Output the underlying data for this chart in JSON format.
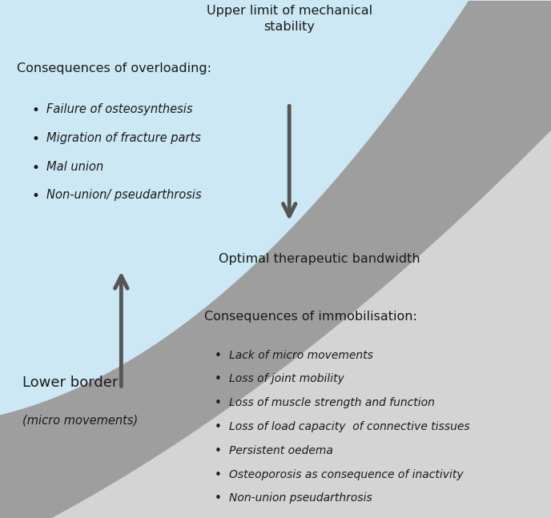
{
  "bg_color": "#ffffff",
  "light_blue": "#cce8f4",
  "gray_band": "#9e9e9e",
  "gray_light": "#d4d4d4",
  "text_color": "#1a1a1a",
  "arrow_color": "#555555",
  "figsize": [
    6.88,
    6.47
  ],
  "dpi": 100,
  "upper_label": "Upper limit of mechanical\nstability",
  "lower_label": "Lower border",
  "lower_sublabel": "(micro movements)",
  "middle_label": "Optimal therapeutic bandwidth",
  "overloading_title": "Consequences of overloading:",
  "overloading_items": [
    "Failure of osteosynthesis",
    "Migration of fracture parts",
    "Mal union",
    "Non-union/ pseudarthrosis"
  ],
  "immobilisation_title": "Consequences of immobilisation:",
  "immobilisation_items": [
    "Lack of micro movements",
    "Loss of joint mobility",
    "Loss of muscle strength and function",
    "Loss of load capacity  of connective tissues",
    "Persistent oedema",
    "Osteoporosis as consequence of inactivity",
    "Non-union pseudarthrosis"
  ]
}
